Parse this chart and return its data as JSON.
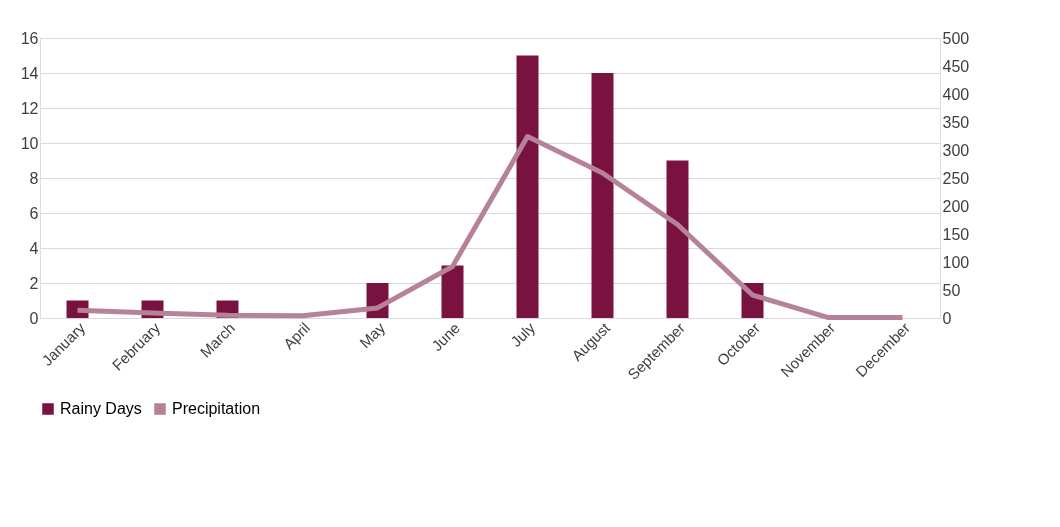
{
  "chart_data": {
    "type": "bar",
    "categories": [
      "January",
      "February",
      "March",
      "April",
      "May",
      "June",
      "July",
      "August",
      "September",
      "October",
      "November",
      "December"
    ],
    "series": [
      {
        "name": "Rainy Days",
        "color": "#79123f",
        "values": [
          1,
          1,
          1,
          0,
          2,
          3,
          15,
          14,
          9,
          2,
          0,
          0
        ]
      },
      {
        "name": "Precipitation",
        "type": "line",
        "axis": "y2",
        "color": "#b5829a",
        "values": [
          14,
          9,
          5,
          4,
          18,
          92,
          324,
          259,
          167,
          41,
          1,
          1
        ]
      }
    ],
    "ylim": [
      0,
      16
    ],
    "yticks": [
      0,
      2,
      4,
      6,
      8,
      10,
      12,
      14,
      16
    ],
    "y2lim": [
      0,
      500
    ],
    "y2ticks": [
      0,
      50,
      100,
      150,
      200,
      250,
      300,
      350,
      400,
      450,
      500
    ],
    "grid": "y",
    "legend": "bottom",
    "line_style": "solid",
    "marker": "none"
  }
}
